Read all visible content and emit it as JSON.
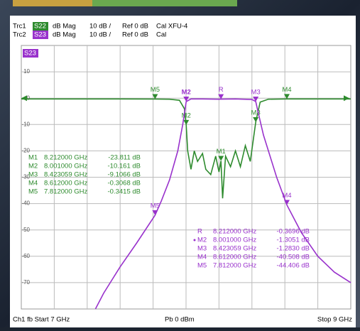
{
  "chart_data": {
    "type": "line",
    "xlim": [
      7,
      9
    ],
    "ylim": [
      -80,
      20
    ],
    "yticks": [
      -70,
      -60,
      -50,
      -40,
      -30,
      -20,
      -10,
      0,
      10
    ],
    "grid": true,
    "traces": [
      {
        "name": "Trc1",
        "format": "dB Mag",
        "scale": "10 dB /",
        "ref": "Ref 0 dB",
        "cal": "Cal XFU-4"
      },
      {
        "name": "Trc2",
        "format": "dB Mag",
        "scale": "10 dB /",
        "ref": "Ref 0 dB",
        "cal": "Cal"
      }
    ],
    "series": [
      {
        "name": "S22",
        "color": "#2e8b2e",
        "x": [
          7.0,
          7.3,
          7.6,
          7.812,
          7.9,
          7.96,
          7.99,
          8.001,
          8.01,
          8.03,
          8.05,
          8.07,
          8.1,
          8.12,
          8.15,
          8.18,
          8.2,
          8.212,
          8.222,
          8.24,
          8.27,
          8.3,
          8.33,
          8.36,
          8.39,
          8.41,
          8.423059,
          8.45,
          8.5,
          8.612,
          8.8,
          9.0
        ],
        "values": [
          -0.3,
          -0.3,
          -0.3,
          -0.3415,
          -0.4,
          -0.8,
          -4,
          -10.161,
          -20,
          -27,
          -20,
          -24,
          -21,
          -27,
          -29,
          -22,
          -28,
          -23.811,
          -38,
          -22,
          -26,
          -20,
          -26,
          -18,
          -24,
          -15,
          -9.1066,
          -1.5,
          -0.4,
          -0.3068,
          -0.3,
          -0.3
        ],
        "markers": [
          {
            "name": "M1",
            "x": 8.212,
            "y": -23.811,
            "x_label": "8.212000 GHz",
            "y_label": "-23.811 dB"
          },
          {
            "name": "M2",
            "x": 8.001,
            "y": -10.161,
            "x_label": "8.001000 GHz",
            "y_label": "-10.161 dB"
          },
          {
            "name": "M3",
            "x": 8.423059,
            "y": -9.1066,
            "x_label": "8.423059 GHz",
            "y_label": "-9.1066 dB"
          },
          {
            "name": "M4",
            "x": 8.612,
            "y": -0.3068,
            "x_label": "8.612000 GHz",
            "y_label": "-0.3068 dB"
          },
          {
            "name": "M5",
            "x": 7.812,
            "y": -0.3415,
            "x_label": "7.812000 GHz",
            "y_label": "-0.3415 dB"
          }
        ]
      },
      {
        "name": "S23",
        "color": "#9932cc",
        "x": [
          7.45,
          7.5,
          7.6,
          7.7,
          7.812,
          7.85,
          7.9,
          7.95,
          7.98,
          8.001,
          8.03,
          8.1,
          8.2,
          8.212,
          8.3,
          8.4,
          8.423059,
          8.44,
          8.47,
          8.5,
          8.55,
          8.612,
          8.7,
          8.8,
          8.9,
          9.0
        ],
        "values": [
          -80,
          -74,
          -64,
          -55,
          -44.406,
          -39,
          -31,
          -20,
          -10,
          -1.3051,
          -0.3,
          -0.3,
          -0.4,
          -0.3696,
          -0.3,
          -0.5,
          -1.283,
          -6,
          -14,
          -20,
          -30,
          -40.508,
          -51,
          -60,
          -66,
          -70
        ],
        "markers": [
          {
            "name": "R",
            "x": 8.212,
            "y": -0.3696,
            "x_label": "8.212000 GHz",
            "y_label": "-0.3696 dB"
          },
          {
            "name": "M2",
            "x": 8.001,
            "y": -1.3051,
            "x_label": "8.001000 GHz",
            "y_label": "-1.3051 dB",
            "active": true
          },
          {
            "name": "M3",
            "x": 8.423059,
            "y": -1.283,
            "x_label": "8.423059 GHz",
            "y_label": "-1.2830 dB"
          },
          {
            "name": "M4",
            "x": 8.612,
            "y": -40.508,
            "x_label": "8.612000 GHz",
            "y_label": "-40.508 dB"
          },
          {
            "name": "M5",
            "x": 7.812,
            "y": -44.406,
            "x_label": "7.812000 GHz",
            "y_label": "-44.406 dB"
          }
        ]
      }
    ],
    "footer": {
      "left": "Ch1 fb Start 7 GHz",
      "center": "Pb 0 dBm",
      "right": "Stop 9 GHz"
    }
  }
}
